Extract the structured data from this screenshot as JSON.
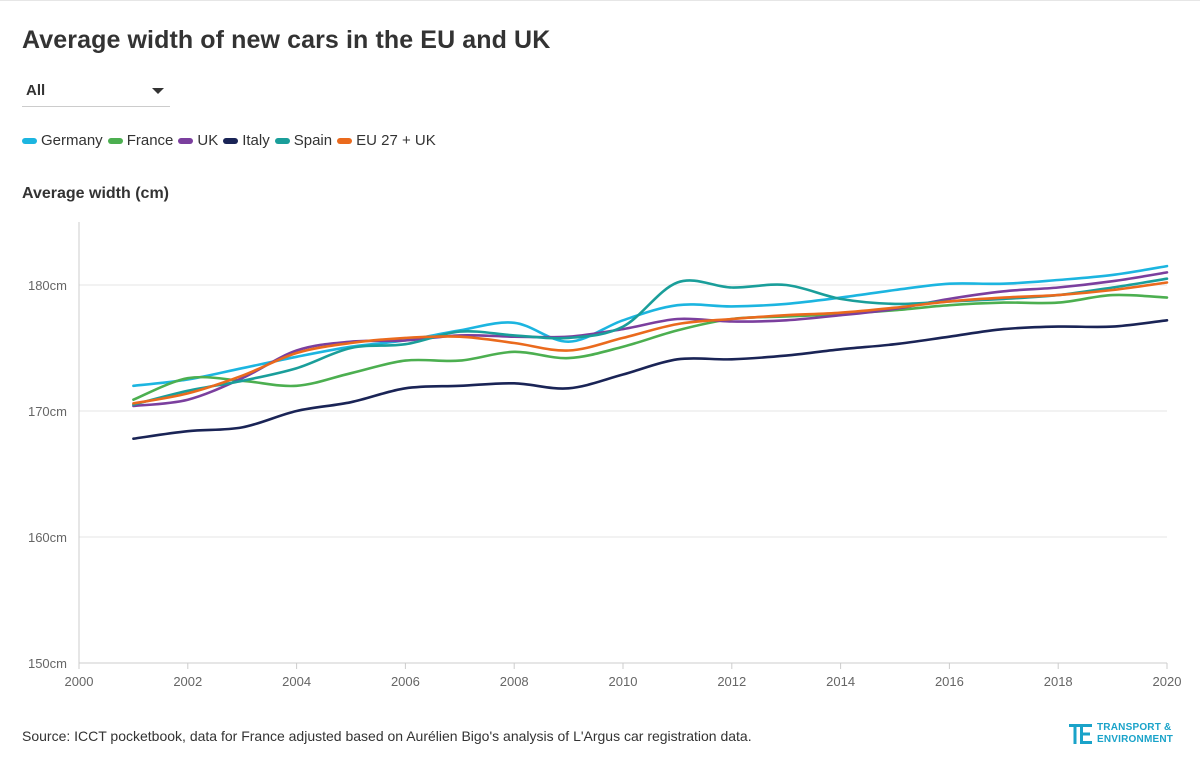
{
  "title": "Average width of new cars in the EU and UK",
  "filter": {
    "selected": "All"
  },
  "legend": [
    {
      "name": "Germany",
      "color": "#1cb5e0"
    },
    {
      "name": "France",
      "color": "#4caf50"
    },
    {
      "name": "UK",
      "color": "#7b3f9e"
    },
    {
      "name": "Italy",
      "color": "#1a2456"
    },
    {
      "name": "Spain",
      "color": "#1a9e9a"
    },
    {
      "name": "EU 27 + UK",
      "color": "#ea6a1d"
    }
  ],
  "chart_data": {
    "type": "line",
    "ylabel": "Average width (cm)",
    "xlim": [
      2000,
      2020
    ],
    "ylim": [
      150,
      185
    ],
    "x_ticks": [
      "2000",
      "2002",
      "2004",
      "2006",
      "2008",
      "2010",
      "2012",
      "2014",
      "2016",
      "2018",
      "2020"
    ],
    "y_ticks": [
      {
        "value": 150,
        "label": "150cm"
      },
      {
        "value": 160,
        "label": "160cm"
      },
      {
        "value": 170,
        "label": "170cm"
      },
      {
        "value": 180,
        "label": "180cm"
      }
    ],
    "x": [
      2001,
      2002,
      2003,
      2004,
      2005,
      2006,
      2007,
      2008,
      2009,
      2010,
      2011,
      2012,
      2013,
      2014,
      2015,
      2016,
      2017,
      2018,
      2019,
      2020
    ],
    "series": [
      {
        "name": "Germany",
        "color": "#1cb5e0",
        "values": [
          172.0,
          172.5,
          173.4,
          174.3,
          175.1,
          175.6,
          176.4,
          177.0,
          175.5,
          177.2,
          178.4,
          178.3,
          178.5,
          179.0,
          179.6,
          180.1,
          180.1,
          180.4,
          180.8,
          181.5
        ]
      },
      {
        "name": "France",
        "color": "#4caf50",
        "values": [
          170.9,
          172.6,
          172.4,
          172.0,
          173.0,
          174.0,
          174.0,
          174.7,
          174.2,
          175.1,
          176.4,
          177.3,
          177.5,
          177.7,
          178.0,
          178.4,
          178.6,
          178.6,
          179.2,
          179.0
        ]
      },
      {
        "name": "UK",
        "color": "#7b3f9e",
        "values": [
          170.4,
          170.9,
          172.6,
          174.8,
          175.5,
          175.6,
          176.0,
          175.9,
          175.9,
          176.5,
          177.3,
          177.1,
          177.2,
          177.6,
          178.1,
          178.9,
          179.5,
          179.8,
          180.3,
          181.0
        ]
      },
      {
        "name": "Italy",
        "color": "#1a2456",
        "values": [
          167.8,
          168.4,
          168.7,
          170.0,
          170.7,
          171.8,
          172.0,
          172.2,
          171.8,
          172.9,
          174.1,
          174.1,
          174.4,
          174.9,
          175.3,
          175.9,
          176.5,
          176.7,
          176.7,
          177.2
        ]
      },
      {
        "name": "Spain",
        "color": "#1a9e9a",
        "values": [
          170.5,
          171.6,
          172.4,
          173.4,
          175.0,
          175.3,
          176.3,
          176.0,
          175.8,
          176.7,
          180.2,
          179.8,
          180.0,
          178.9,
          178.5,
          178.7,
          178.9,
          179.2,
          179.8,
          180.5
        ]
      },
      {
        "name": "EU 27 + UK",
        "color": "#ea6a1d",
        "values": [
          170.6,
          171.4,
          172.8,
          174.6,
          175.4,
          175.8,
          175.9,
          175.4,
          174.8,
          175.8,
          176.9,
          177.3,
          177.6,
          177.8,
          178.2,
          178.7,
          179.0,
          179.2,
          179.6,
          180.2
        ]
      }
    ]
  },
  "source": "Source: ICCT pocketbook, data for France adjusted based on Aurélien Bigo's analysis of L'Argus car registration data.",
  "logo": {
    "line1": "TRANSPORT &",
    "line2": "ENVIRONMENT",
    "color": "#1aa3c9"
  }
}
